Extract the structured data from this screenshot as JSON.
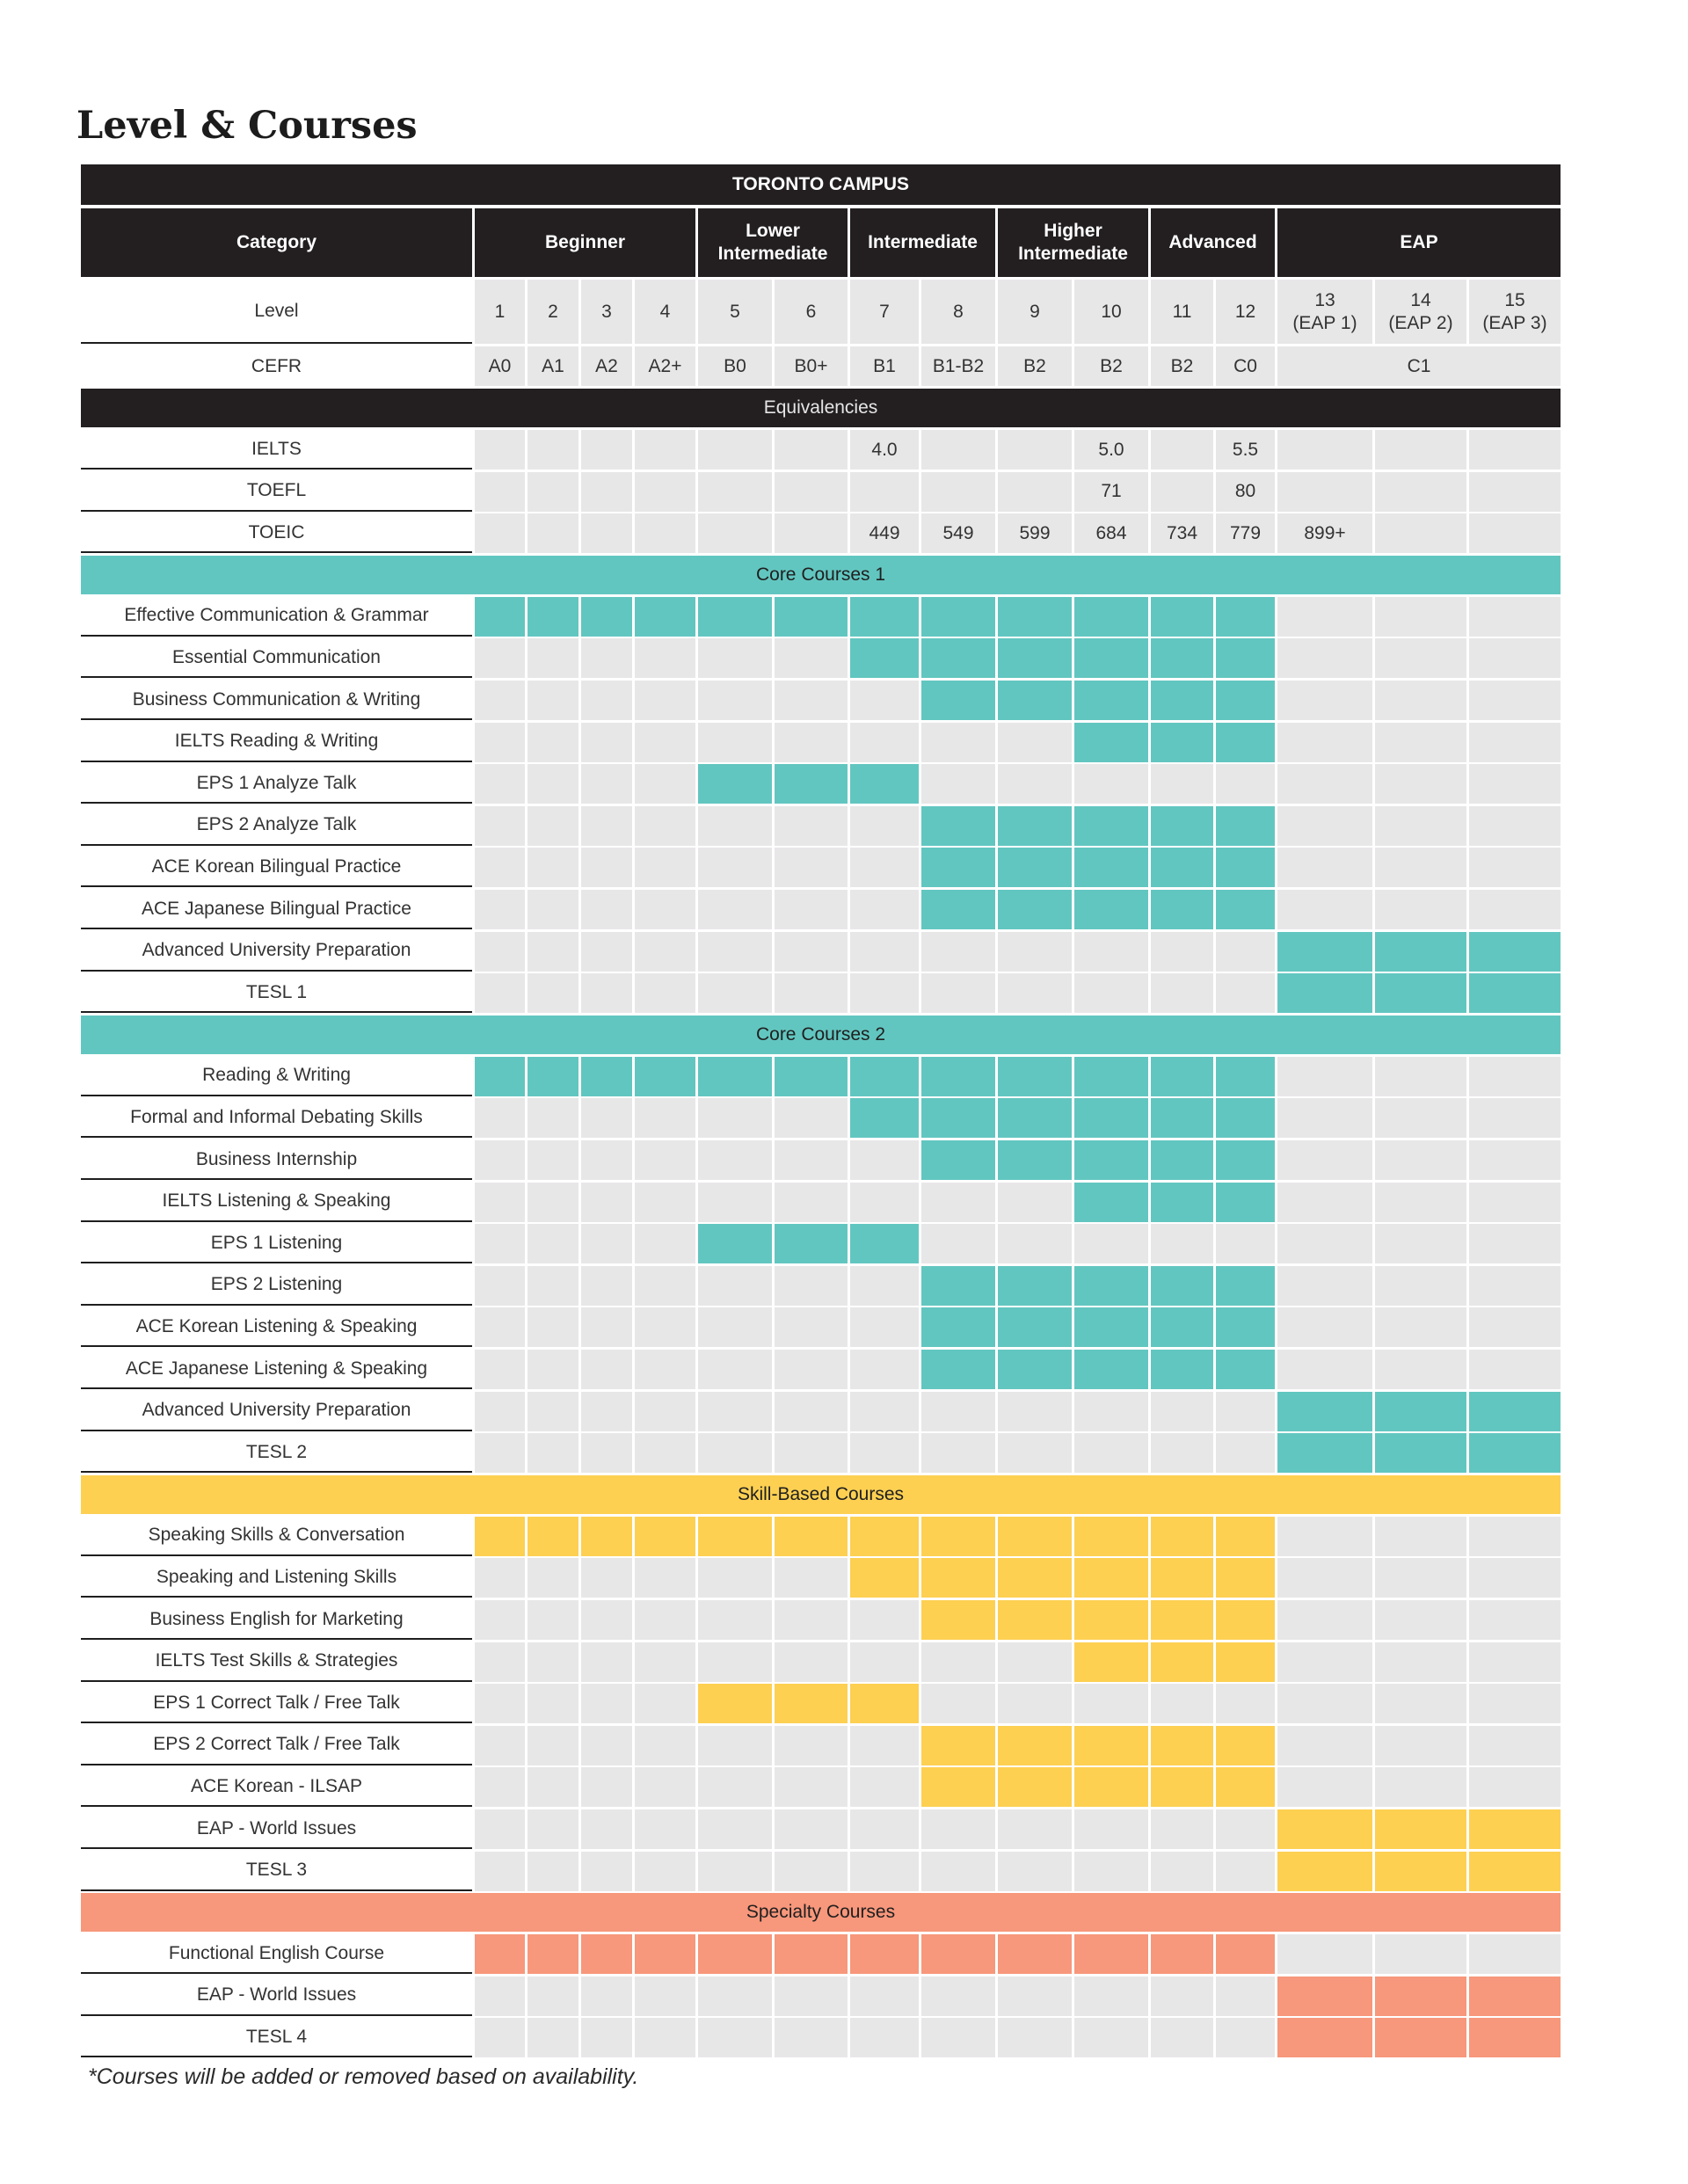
{
  "title": "Level & Courses",
  "campus": "TORONTO CAMPUS",
  "category_label": "Category",
  "groups": [
    {
      "label": "Beginner",
      "span": 4
    },
    {
      "label": "Lower\nIntermediate",
      "span": 2
    },
    {
      "label": "Intermediate",
      "span": 2
    },
    {
      "label": "Higher\nIntermediate",
      "span": 2
    },
    {
      "label": "Advanced",
      "span": 2
    },
    {
      "label": "EAP",
      "span": 3
    }
  ],
  "level_row": {
    "label": "Level",
    "values": [
      "1",
      "2",
      "3",
      "4",
      "5",
      "6",
      "7",
      "8",
      "9",
      "10",
      "11",
      "12",
      "13\n(EAP 1)",
      "14\n(EAP 2)",
      "15\n(EAP 3)"
    ]
  },
  "cefr_row": {
    "label": "CEFR",
    "values": [
      "A0",
      "A1",
      "A2",
      "A2+",
      "B0",
      "B0+",
      "B1",
      "B1-B2",
      "B2",
      "B2",
      "B2",
      "C0"
    ],
    "eap_value": "C1"
  },
  "colors": {
    "dark": "#231f20",
    "teal": "#62c6c0",
    "yellow": "#fdd052",
    "salmon": "#f7977b",
    "empty": "#e8e7e8"
  },
  "equivalencies": {
    "title": "Equivalencies",
    "rows": [
      {
        "label": "IELTS",
        "values": [
          "",
          "",
          "",
          "",
          "",
          "",
          "4.0",
          "",
          "",
          "5.0",
          "",
          "5.5",
          "",
          "",
          ""
        ]
      },
      {
        "label": "TOEFL",
        "values": [
          "",
          "",
          "",
          "",
          "",
          "",
          "",
          "",
          "",
          "71",
          "",
          "80",
          "",
          "",
          ""
        ]
      },
      {
        "label": "TOEIC",
        "values": [
          "",
          "",
          "",
          "",
          "",
          "",
          "449",
          "549",
          "599",
          "684",
          "734",
          "779",
          "899+",
          "",
          ""
        ]
      }
    ]
  },
  "sections": [
    {
      "title": "Core Courses 1",
      "color": "teal",
      "rows": [
        {
          "label": "Effective Communication & Grammar",
          "levels": [
            1,
            12
          ]
        },
        {
          "label": "Essential Communication",
          "levels": [
            7,
            12
          ]
        },
        {
          "label": "Business Communication & Writing",
          "levels": [
            8,
            12
          ]
        },
        {
          "label": "IELTS Reading & Writing",
          "levels": [
            10,
            12
          ]
        },
        {
          "label": "EPS 1 Analyze Talk",
          "levels": [
            5,
            7
          ]
        },
        {
          "label": "EPS 2 Analyze Talk",
          "levels": [
            8,
            12
          ]
        },
        {
          "label": "ACE Korean Bilingual Practice",
          "levels": [
            8,
            12
          ]
        },
        {
          "label": "ACE Japanese Bilingual Practice",
          "levels": [
            8,
            12
          ]
        },
        {
          "label": "Advanced University Preparation",
          "levels": [
            13,
            15
          ]
        },
        {
          "label": "TESL 1",
          "levels": [
            13,
            15
          ]
        }
      ]
    },
    {
      "title": "Core Courses 2",
      "color": "teal",
      "rows": [
        {
          "label": "Reading & Writing",
          "levels": [
            1,
            12
          ]
        },
        {
          "label": "Formal and Informal Debating Skills",
          "levels": [
            7,
            12
          ]
        },
        {
          "label": "Business Internship",
          "levels": [
            8,
            12
          ]
        },
        {
          "label": "IELTS Listening & Speaking",
          "levels": [
            10,
            12
          ]
        },
        {
          "label": "EPS 1 Listening",
          "levels": [
            5,
            7
          ]
        },
        {
          "label": "EPS 2 Listening",
          "levels": [
            8,
            12
          ]
        },
        {
          "label": "ACE Korean Listening & Speaking",
          "levels": [
            8,
            12
          ]
        },
        {
          "label": "ACE Japanese Listening & Speaking",
          "levels": [
            8,
            12
          ]
        },
        {
          "label": "Advanced University Preparation",
          "levels": [
            13,
            15
          ]
        },
        {
          "label": "TESL 2",
          "levels": [
            13,
            15
          ]
        }
      ]
    },
    {
      "title": "Skill-Based Courses",
      "color": "yellow",
      "rows": [
        {
          "label": "Speaking Skills & Conversation",
          "levels": [
            1,
            12
          ]
        },
        {
          "label": "Speaking and Listening Skills",
          "levels": [
            7,
            12
          ]
        },
        {
          "label": "Business English for Marketing",
          "levels": [
            8,
            12
          ]
        },
        {
          "label": "IELTS Test Skills & Strategies",
          "levels": [
            10,
            12
          ]
        },
        {
          "label": "EPS 1 Correct Talk / Free Talk",
          "levels": [
            5,
            7
          ]
        },
        {
          "label": "EPS 2 Correct Talk / Free Talk",
          "levels": [
            8,
            12
          ]
        },
        {
          "label": "ACE Korean - ILSAP",
          "levels": [
            8,
            12
          ]
        },
        {
          "label": "EAP - World Issues",
          "levels": [
            13,
            15
          ]
        },
        {
          "label": "TESL 3",
          "levels": [
            13,
            15
          ]
        }
      ]
    },
    {
      "title": "Specialty Courses",
      "color": "salmon",
      "rows": [
        {
          "label": "Functional English Course",
          "levels": [
            1,
            12
          ]
        },
        {
          "label": "EAP - World Issues",
          "levels": [
            13,
            15
          ]
        },
        {
          "label": "TESL 4",
          "levels": [
            13,
            15
          ]
        }
      ]
    }
  ],
  "footnote": "*Courses will be added or removed based on availability."
}
